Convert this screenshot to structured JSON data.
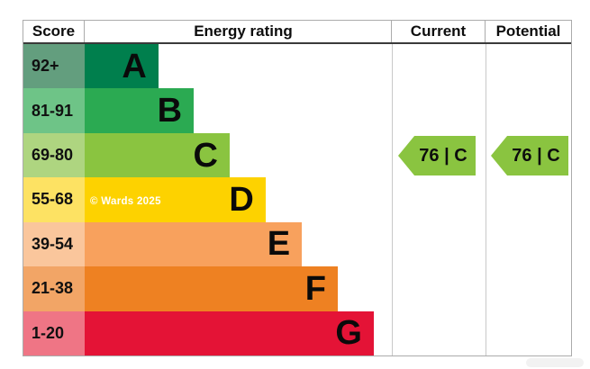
{
  "header": {
    "score": "Score",
    "energy_rating": "Energy rating",
    "current": "Current",
    "potential": "Potential"
  },
  "watermark": "© Wards 2025",
  "chart_data": {
    "type": "bar",
    "subtype": "epc-energy-rating-bands",
    "title": "Energy rating",
    "columns": [
      "Score",
      "Energy rating",
      "Current",
      "Potential"
    ],
    "bands": [
      {
        "letter": "A",
        "score_range": "92+",
        "bar_color": "#007f4d",
        "score_bg": "#639e7e",
        "bar_length_pct": 24.0
      },
      {
        "letter": "B",
        "score_range": "81-91",
        "bar_color": "#2baa52",
        "score_bg": "#6ec487",
        "bar_length_pct": 35.5
      },
      {
        "letter": "C",
        "score_range": "69-80",
        "bar_color": "#8ac440",
        "score_bg": "#aed580",
        "bar_length_pct": 47.2
      },
      {
        "letter": "D",
        "score_range": "55-68",
        "bar_color": "#fdd200",
        "score_bg": "#fde263",
        "bar_length_pct": 58.9
      },
      {
        "letter": "E",
        "score_range": "39-54",
        "bar_color": "#f8a15d",
        "score_bg": "#fac69c",
        "bar_length_pct": 70.7
      },
      {
        "letter": "F",
        "score_range": "21-38",
        "bar_color": "#ee8122",
        "score_bg": "#f2a566",
        "bar_length_pct": 82.4
      },
      {
        "letter": "G",
        "score_range": "1-20",
        "bar_color": "#e41336",
        "score_bg": "#ef7585",
        "bar_length_pct": 94.1
      }
    ],
    "current": {
      "value": 76,
      "band": "C",
      "label": "76 | C",
      "arrow_color": "#8ac440"
    },
    "potential": {
      "value": 76,
      "band": "C",
      "label": "76 | C",
      "arrow_color": "#8ac440"
    }
  }
}
